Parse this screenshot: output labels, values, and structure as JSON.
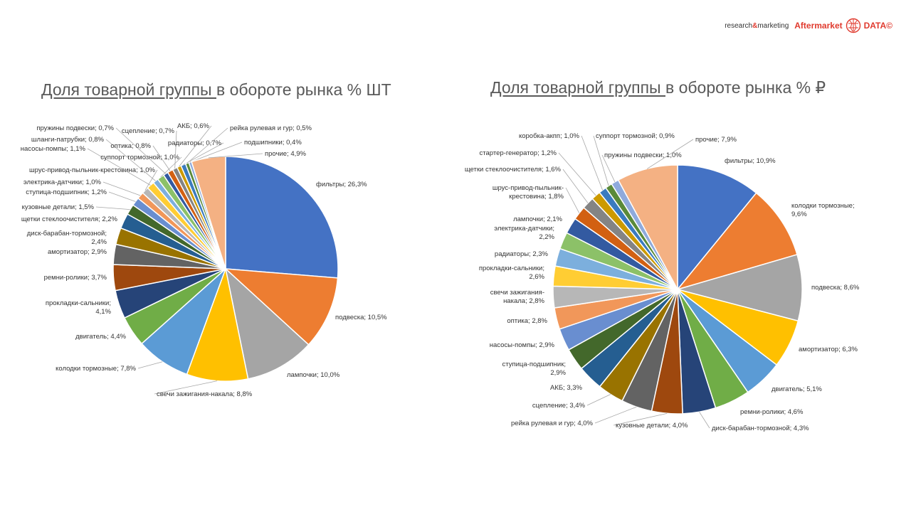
{
  "brand": {
    "tag_prefix": "research",
    "tag_amp": "&",
    "tag_suffix": "marketing",
    "name": "Aftermarket",
    "data": "DATA©",
    "accent": "#e03a2e"
  },
  "chart_data": [
    {
      "type": "pie",
      "title_underlined": "Доля товарной группы ",
      "title_rest": "в обороте рынка % ШТ",
      "unit": "%",
      "slices": [
        {
          "label": "фильтры",
          "value": 26.3,
          "display": "фильтры; 26,3%",
          "color": "#4472c4"
        },
        {
          "label": "подвеска",
          "value": 10.5,
          "display": "подвеска; 10,5%",
          "color": "#ed7d31"
        },
        {
          "label": "лампочки",
          "value": 10.0,
          "display": "лампочки; 10,0%",
          "color": "#a5a5a5"
        },
        {
          "label": "свечи зажигания-накала",
          "value": 8.8,
          "display": "свечи зажигания-накала; 8,8%",
          "color": "#ffc000"
        },
        {
          "label": "колодки тормозные",
          "value": 7.8,
          "display": "колодки тормозные; 7,8%",
          "color": "#5b9bd5"
        },
        {
          "label": "двигатель",
          "value": 4.4,
          "display": "двигатель; 4,4%",
          "color": "#70ad47"
        },
        {
          "label": "прокладки-сальники",
          "value": 4.1,
          "display": "прокладки-сальники;|4,1%",
          "color": "#264478"
        },
        {
          "label": "ремни-ролики",
          "value": 3.7,
          "display": "ремни-ролики; 3,7%",
          "color": "#9e480e"
        },
        {
          "label": "амортизатор",
          "value": 2.9,
          "display": "амортизатор; 2,9%",
          "color": "#636363"
        },
        {
          "label": "диск-барабан-тормозной",
          "value": 2.4,
          "display": "диск-барабан-тормозной;|2,4%",
          "color": "#997300"
        },
        {
          "label": "щетки стеклоочистителя",
          "value": 2.2,
          "display": "щетки стеклоочистителя; 2,2%",
          "color": "#255e91"
        },
        {
          "label": "кузовные детали",
          "value": 1.5,
          "display": "кузовные детали; 1,5%",
          "color": "#43682b"
        },
        {
          "label": "ступица-подшипник",
          "value": 1.2,
          "display": "ступица-подшипник; 1,2%",
          "color": "#698ed0"
        },
        {
          "label": "электрика-датчики",
          "value": 1.0,
          "display": "электрика-датчики; 1,0%",
          "color": "#f1975a"
        },
        {
          "label": "шрус-привод-пыльник-крестовина",
          "value": 1.0,
          "display": "шрус-привод-пыльник-крестовина; 1,0%",
          "color": "#b7b7b7"
        },
        {
          "label": "насосы-помпы",
          "value": 1.1,
          "display": "насосы-помпы; 1,1%",
          "color": "#ffcd33"
        },
        {
          "label": "шланги-патрубки",
          "value": 0.8,
          "display": "шланги-патрубки; 0,8%",
          "color": "#7cafdd"
        },
        {
          "label": "суппорт тормозной",
          "value": 1.0,
          "display": "суппорт тормозной; 1,0%",
          "color": "#8cc168"
        },
        {
          "label": "пружины подвески",
          "value": 0.7,
          "display": "пружины подвески; 0,7%",
          "color": "#335aa1"
        },
        {
          "label": "оптика",
          "value": 0.8,
          "display": "оптика; 0,8%",
          "color": "#d26012"
        },
        {
          "label": "сцепление",
          "value": 0.7,
          "display": "сцепление; 0,7%",
          "color": "#848484"
        },
        {
          "label": "АКБ",
          "value": 0.6,
          "display": "АКБ; 0,6%",
          "color": "#cc9a00"
        },
        {
          "label": "радиаторы",
          "value": 0.7,
          "display": "радиаторы; 0,7%",
          "color": "#3a7bbf"
        },
        {
          "label": "рейка рулевая и гур",
          "value": 0.5,
          "display": "рейка рулевая и гур; 0,5%",
          "color": "#5a8a39"
        },
        {
          "label": "подшипники",
          "value": 0.4,
          "display": "подшипники; 0,4%",
          "color": "#8faadc"
        },
        {
          "label": "прочие",
          "value": 4.9,
          "display": "прочие; 4,9%",
          "color": "#f4b183"
        }
      ]
    },
    {
      "type": "pie",
      "title_underlined": "Доля товарной группы ",
      "title_rest": "в обороте рынка % ₽",
      "unit": "%",
      "slices": [
        {
          "label": "фильтры",
          "value": 10.9,
          "display": "фильтры; 10,9%",
          "color": "#4472c4"
        },
        {
          "label": "колодки тормозные",
          "value": 9.6,
          "display": "колодки тормозные;|9,6%",
          "color": "#ed7d31"
        },
        {
          "label": "подвеска",
          "value": 8.6,
          "display": "подвеска; 8,6%",
          "color": "#a5a5a5"
        },
        {
          "label": "амортизатор",
          "value": 6.3,
          "display": "амортизатор; 6,3%",
          "color": "#ffc000"
        },
        {
          "label": "двигатель",
          "value": 5.1,
          "display": "двигатель; 5,1%",
          "color": "#5b9bd5"
        },
        {
          "label": "ремни-ролики",
          "value": 4.6,
          "display": "ремни-ролики; 4,6%",
          "color": "#70ad47"
        },
        {
          "label": "диск-барабан-тормозной",
          "value": 4.3,
          "display": "диск-барабан-тормозной; 4,3%",
          "color": "#264478"
        },
        {
          "label": "кузовные детали",
          "value": 4.0,
          "display": "кузовные детали; 4,0%",
          "color": "#9e480e"
        },
        {
          "label": "рейка рулевая и гур",
          "value": 4.0,
          "display": "рейка рулевая и гур; 4,0%",
          "color": "#636363"
        },
        {
          "label": "сцепление",
          "value": 3.4,
          "display": "сцепление; 3,4%",
          "color": "#997300"
        },
        {
          "label": "АКБ",
          "value": 3.3,
          "display": "АКБ; 3,3%",
          "color": "#255e91"
        },
        {
          "label": "ступица-подшипник",
          "value": 2.9,
          "display": "ступица-подшипник;|2,9%",
          "color": "#43682b"
        },
        {
          "label": "насосы-помпы",
          "value": 2.9,
          "display": "насосы-помпы; 2,9%",
          "color": "#698ed0"
        },
        {
          "label": "оптика",
          "value": 2.8,
          "display": "оптика; 2,8%",
          "color": "#f1975a"
        },
        {
          "label": "свечи зажигания-накала",
          "value": 2.8,
          "display": "свечи зажигания-|накала; 2,8%",
          "color": "#b7b7b7"
        },
        {
          "label": "прокладки-сальники",
          "value": 2.6,
          "display": "прокладки-сальники;|2,6%",
          "color": "#ffcd33"
        },
        {
          "label": "радиаторы",
          "value": 2.3,
          "display": "радиаторы; 2,3%",
          "color": "#7cafdd"
        },
        {
          "label": "электрика-датчики",
          "value": 2.2,
          "display": "электрика-датчики;|2,2%",
          "color": "#8cc168"
        },
        {
          "label": "лампочки",
          "value": 2.1,
          "display": "лампочки; 2,1%",
          "color": "#335aa1"
        },
        {
          "label": "шрус-привод-пыльник-крестовина",
          "value": 1.8,
          "display": "шрус-привод-пыльник-|крестовина; 1,8%",
          "color": "#d26012"
        },
        {
          "label": "щетки стеклоочистителя",
          "value": 1.6,
          "display": "щетки стеклоочистителя; 1,6%",
          "color": "#848484"
        },
        {
          "label": "стартер-генератор",
          "value": 1.2,
          "display": "стартер-генератор; 1,2%",
          "color": "#cc9a00"
        },
        {
          "label": "коробка-акпп",
          "value": 1.0,
          "display": "коробка-акпп; 1,0%",
          "color": "#3a7bbf"
        },
        {
          "label": "суппорт тормозной",
          "value": 0.9,
          "display": "суппорт тормозной; 0,9%",
          "color": "#5a8a39"
        },
        {
          "label": "пружины подвески",
          "value": 1.0,
          "display": "пружины подвески; 1,0%",
          "color": "#8faadc"
        },
        {
          "label": "прочие",
          "value": 7.9,
          "display": "прочие; 7,9%",
          "color": "#f4b183"
        }
      ]
    }
  ]
}
